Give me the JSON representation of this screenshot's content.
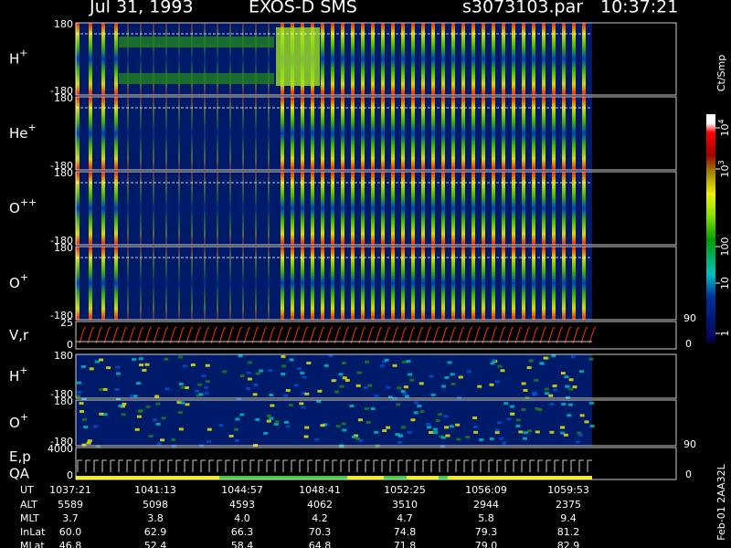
{
  "header": {
    "date": "Jul 31, 1993",
    "instrument": "EXOS-D SMS",
    "file": "s3073103.par",
    "time": "10:37:21"
  },
  "panels": [
    {
      "label": "H",
      "sup": "+",
      "ticks": [
        "180",
        "-180"
      ]
    },
    {
      "label": "He",
      "sup": "+",
      "ticks": [
        "180",
        "-180"
      ]
    },
    {
      "label": "O",
      "sup": "++",
      "ticks": [
        "180",
        "-180"
      ]
    },
    {
      "label": "O",
      "sup": "+",
      "ticks": [
        "180",
        "-180"
      ]
    },
    {
      "label": "V,r",
      "ticks": [
        "25",
        "0"
      ],
      "right_ticks": [
        "90",
        "0"
      ]
    },
    {
      "label": "H",
      "sup": "+",
      "ticks": [
        "180",
        "-180"
      ]
    },
    {
      "label": "O",
      "sup": "+",
      "ticks": [
        "180",
        "-180"
      ]
    },
    {
      "label": "E,p",
      "sub_label": "QA",
      "ticks": [
        "4000",
        "0"
      ],
      "right_ticks": [
        "90",
        "0"
      ]
    }
  ],
  "colorbar": {
    "unit": "Ct/Smp",
    "ticks": [
      {
        "base": "10",
        "exp": "4"
      },
      {
        "base": "10",
        "exp": "3"
      },
      {
        "base": "100"
      },
      {
        "base": "10"
      },
      {
        "base": "1"
      }
    ]
  },
  "table": {
    "rows": [
      [
        "UT",
        "1037:21",
        "1041:13",
        "1044:57",
        "1048:41",
        "1052:25",
        "1056:09",
        "1059:53"
      ],
      [
        "ALT",
        "5589",
        "5098",
        "4593",
        "4062",
        "3510",
        "2944",
        "2375"
      ],
      [
        "MLT",
        "3.7",
        "3.8",
        "4.0",
        "4.2",
        "4.7",
        "5.8",
        "9.4"
      ],
      [
        "InLat",
        "60.0",
        "62.9",
        "66.3",
        "70.3",
        "74.8",
        "79.3",
        "81.2"
      ],
      [
        "MLat",
        "46.8",
        "52.4",
        "58.4",
        "64.8",
        "71.8",
        "79.0",
        "82.9"
      ]
    ]
  },
  "footer": "Feb-01 2AA32L"
}
